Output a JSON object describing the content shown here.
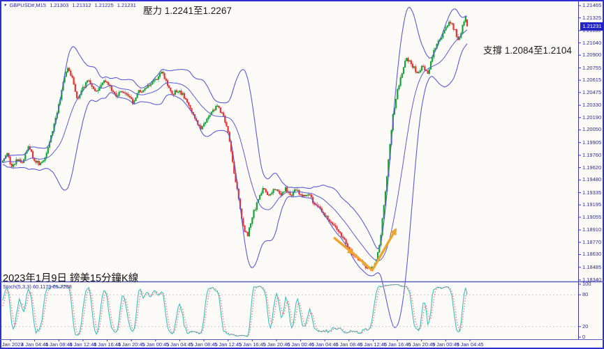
{
  "header": {
    "symbol_icon": "▼",
    "title": "GBPUSD#,M15",
    "ohlc": {
      "open": "1.21303",
      "high": "1.21312",
      "low": "1.21225",
      "close": "1.21231"
    }
  },
  "annotations": {
    "resistance": "壓力 1.2241至1.2267",
    "support": "支撐 1.2084至1.2104",
    "caption": "2023年1月9日 鎊美15分鐘K線"
  },
  "indicator_panel": {
    "label": "Stoch(5,3,3)",
    "k_value": "60.1179",
    "d_value": "65.7208",
    "level_labels": [
      "100",
      "80",
      "20",
      "0"
    ],
    "levels": [
      100,
      80,
      20,
      0
    ],
    "dashed_levels": [
      80,
      20
    ]
  },
  "price_axis": {
    "current_price": "1.21231",
    "ticks": [
      "1.21465",
      "1.21325",
      "1.21180",
      "1.21040",
      "1.20900",
      "1.20755",
      "1.20615",
      "1.20475",
      "1.20330",
      "1.20190",
      "1.20050",
      "1.19905",
      "1.19760",
      "1.19620",
      "1.19480",
      "1.19335",
      "1.19195",
      "1.19055",
      "1.18910",
      "1.18770",
      "1.18630",
      "1.18485",
      "1.18340"
    ]
  },
  "time_axis": {
    "labels": [
      "4 Jan 2023",
      "4 Jan 04:45",
      "4 Jan 08:45",
      "4 Jan 12:45",
      "4 Jan 16:45",
      "4 Jan 20:45",
      "5 Jan 00:45",
      "5 Jan 04:45",
      "5 Jan 08:45",
      "5 Jan 12:45",
      "5 Jan 16:45",
      "5 Jan 20:45",
      "6 Jan 00:45",
      "6 Jan 04:45",
      "6 Jan 08:45",
      "6 Jan 12:45",
      "6 Jan 16:45",
      "6 Jan 20:45",
      "9 Jan 00:45",
      "9 Jan 04:45"
    ]
  },
  "colors": {
    "frame": "#2e2ed2",
    "panel_border": "#5a5ab8",
    "axis_text": "#2a2aa8",
    "candle_up": "#17a339",
    "candle_down": "#e33434",
    "bollinger": "#5b5bd6",
    "stoch_k": "#3fbdbd",
    "stoch_d": "#f46a6a",
    "level_line": "#c9c9c9",
    "arrow": "#eda62b",
    "price_tag_bg": "#2424c4"
  },
  "chart_data": {
    "type": "candlestick",
    "title": "GBPUSD# M15 with Bollinger Bands and Stochastic(5,3,3)",
    "symbol": "GBPUSD#",
    "timeframe": "M15",
    "price_range": {
      "top": 1.21465,
      "bottom": 1.1834
    },
    "x_range_labels": [
      "4 Jan 2023",
      "9 Jan 04:45"
    ],
    "current_bar": {
      "open": 1.21303,
      "high": 1.21312,
      "low": 1.21225,
      "close": 1.21231
    },
    "resistance_zone": [
      1.2241,
      1.2267
    ],
    "support_zone": [
      1.2084,
      1.2104
    ],
    "indicators": [
      {
        "name": "Bollinger Bands",
        "period": 20,
        "deviation": 2
      },
      {
        "name": "Stochastic",
        "params": [
          5,
          3,
          3
        ],
        "k": 60.1179,
        "d": 65.7208,
        "scale": [
          0,
          100
        ]
      }
    ],
    "candle_count": 308,
    "noise_seed": 987654,
    "noise_body": 0.00022,
    "noise_wick": 0.0003,
    "close_path_anchors": [
      [
        3,
        1.1968
      ],
      [
        10,
        1.1979
      ],
      [
        16,
        1.1962
      ],
      [
        24,
        1.1972
      ],
      [
        32,
        1.1968
      ],
      [
        40,
        1.1988
      ],
      [
        48,
        1.197
      ],
      [
        56,
        1.1966
      ],
      [
        64,
        1.1972
      ],
      [
        72,
        1.1998
      ],
      [
        80,
        1.202
      ],
      [
        88,
        1.2052
      ],
      [
        96,
        1.2077
      ],
      [
        102,
        1.2066
      ],
      [
        110,
        1.204
      ],
      [
        118,
        1.2052
      ],
      [
        126,
        1.2062
      ],
      [
        134,
        1.2048
      ],
      [
        142,
        1.2053
      ],
      [
        150,
        1.2061
      ],
      [
        158,
        1.2052
      ],
      [
        166,
        1.2044
      ],
      [
        174,
        1.205
      ],
      [
        182,
        1.2044
      ],
      [
        190,
        1.2036
      ],
      [
        198,
        1.2048
      ],
      [
        206,
        1.2052
      ],
      [
        214,
        1.2058
      ],
      [
        222,
        1.2062
      ],
      [
        230,
        1.2072
      ],
      [
        238,
        1.2058
      ],
      [
        246,
        1.2046
      ],
      [
        254,
        1.205
      ],
      [
        262,
        1.2044
      ],
      [
        270,
        1.2032
      ],
      [
        278,
        1.2018
      ],
      [
        286,
        1.2006
      ],
      [
        294,
        1.2014
      ],
      [
        302,
        1.2024
      ],
      [
        310,
        1.2032
      ],
      [
        318,
        1.2024
      ],
      [
        326,
        1.2004
      ],
      [
        332,
        1.1969
      ],
      [
        340,
        1.1932
      ],
      [
        348,
        1.1892
      ],
      [
        354,
        1.1884
      ],
      [
        360,
        1.1906
      ],
      [
        368,
        1.1922
      ],
      [
        376,
        1.1938
      ],
      [
        384,
        1.1928
      ],
      [
        392,
        1.1938
      ],
      [
        400,
        1.1931
      ],
      [
        408,
        1.1938
      ],
      [
        416,
        1.193
      ],
      [
        424,
        1.1938
      ],
      [
        432,
        1.1928
      ],
      [
        440,
        1.1934
      ],
      [
        448,
        1.1922
      ],
      [
        456,
        1.1916
      ],
      [
        464,
        1.1908
      ],
      [
        472,
        1.19
      ],
      [
        480,
        1.1893
      ],
      [
        488,
        1.1886
      ],
      [
        496,
        1.1874
      ],
      [
        504,
        1.1864
      ],
      [
        512,
        1.1857
      ],
      [
        520,
        1.1851
      ],
      [
        526,
        1.1849
      ],
      [
        531,
        1.1847
      ],
      [
        538,
        1.1856
      ],
      [
        544,
        1.1882
      ],
      [
        550,
        1.1926
      ],
      [
        556,
        1.1976
      ],
      [
        562,
        1.2022
      ],
      [
        568,
        1.2049
      ],
      [
        574,
        1.2066
      ],
      [
        580,
        1.2088
      ],
      [
        588,
        1.2081
      ],
      [
        596,
        1.207
      ],
      [
        604,
        1.2077
      ],
      [
        612,
        1.2068
      ],
      [
        620,
        1.2095
      ],
      [
        628,
        1.2107
      ],
      [
        636,
        1.2118
      ],
      [
        644,
        1.2128
      ],
      [
        650,
        1.2119
      ],
      [
        656,
        1.2106
      ],
      [
        661,
        1.2121
      ],
      [
        666,
        1.2133
      ],
      [
        670,
        1.21231
      ]
    ],
    "drawn_arrow": {
      "shape": "V-reversal",
      "segment_down": [
        [
          478,
          341
        ],
        [
          506,
          364
        ]
      ],
      "segment_up": [
        [
          504,
          362
        ],
        [
          533,
          388
        ],
        [
          567,
          329
        ]
      ]
    }
  }
}
